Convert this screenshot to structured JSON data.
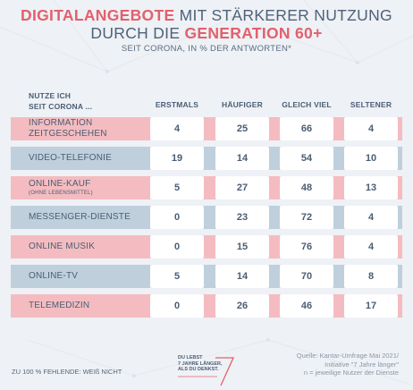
{
  "title": {
    "part1": "DIGITALANGEBOTE",
    "part2": " MIT STÄRKERER NUTZUNG",
    "part3": "DURCH DIE ",
    "part4": "GENERATION 60+"
  },
  "subtitle": "SEIT CORONA, IN % DER ANTWORTEN*",
  "chart_data": {
    "type": "table",
    "row_header": [
      "NUTZE ICH",
      "SEIT CORONA ..."
    ],
    "columns": [
      "ERSTMALS",
      "HÄUFIGER",
      "GLEICH VIEL",
      "SELTENER"
    ],
    "rows": [
      {
        "label": [
          "INFORMATION",
          "ZEITGESCHEHEN"
        ],
        "values": [
          4,
          25,
          66,
          4
        ],
        "style": "pink"
      },
      {
        "label": [
          "VIDEO-TELEFONIE"
        ],
        "values": [
          19,
          14,
          54,
          10
        ],
        "style": "blue"
      },
      {
        "label": [
          "ONLINE-KAUF"
        ],
        "sublabel": "(OHNE LEBENSMITTEL)",
        "values": [
          5,
          27,
          48,
          13
        ],
        "style": "pink"
      },
      {
        "label": [
          "MESSENGER-DIENSTE"
        ],
        "values": [
          0,
          23,
          72,
          4
        ],
        "style": "blue"
      },
      {
        "label": [
          "ONLINE MUSIK"
        ],
        "values": [
          0,
          15,
          76,
          4
        ],
        "style": "pink"
      },
      {
        "label": [
          "ONLINE-TV"
        ],
        "values": [
          5,
          14,
          70,
          8
        ],
        "style": "blue"
      },
      {
        "label": [
          "TELEMEDIZIN"
        ],
        "values": [
          0,
          26,
          46,
          17
        ],
        "style": "pink"
      }
    ],
    "colors": {
      "pink": "#f4bcc0",
      "blue": "#bfd0dc",
      "accent": "#e2606d"
    }
  },
  "footnote": "ZU 100 % FEHLENDE: WEIß NICHT",
  "logo": {
    "lines": [
      "DU LEBST",
      "7 JAHRE LÄNGER,",
      "ALS DU DENKST."
    ]
  },
  "source": {
    "lines": [
      "Quelle: Kantar-Umfrage Mai 2021/",
      "Initiative \"7 Jahre länger\"",
      "n = jeweilige Nutzer der Dienste"
    ]
  }
}
